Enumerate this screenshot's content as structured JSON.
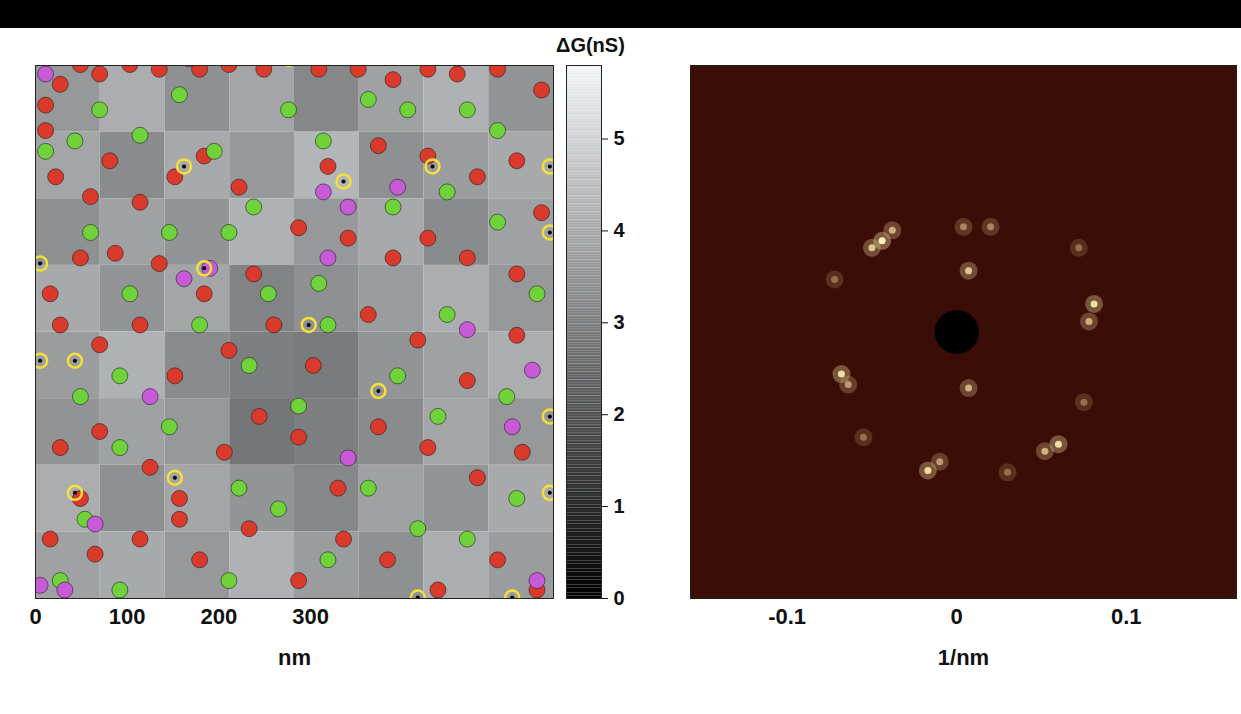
{
  "chart_data": [
    {
      "type": "heatmap",
      "x_label": "nm",
      "xlim": [
        0,
        565
      ],
      "ylim": [
        0,
        565
      ],
      "xticks": [
        0,
        100,
        200,
        300
      ],
      "tick_labels": "x",
      "cells": [
        [
          3.6,
          4.1,
          3.4,
          3.9,
          3.2,
          3.8,
          4.2,
          3.5
        ],
        [
          3.9,
          3.3,
          4.0,
          3.6,
          4.3,
          3.4,
          3.7,
          4.0
        ],
        [
          3.4,
          3.8,
          3.5,
          4.2,
          3.6,
          4.0,
          3.3,
          3.8
        ],
        [
          4.0,
          3.5,
          3.9,
          3.1,
          3.4,
          3.7,
          4.1,
          3.6
        ],
        [
          3.7,
          4.2,
          3.3,
          3.0,
          2.9,
          3.5,
          3.8,
          4.1
        ],
        [
          3.5,
          3.8,
          3.6,
          2.8,
          3.0,
          3.3,
          3.9,
          3.6
        ],
        [
          4.1,
          3.4,
          3.9,
          3.5,
          3.2,
          3.8,
          3.5,
          4.0
        ],
        [
          3.8,
          4.0,
          3.6,
          4.2,
          3.7,
          3.4,
          4.1,
          3.7
        ]
      ],
      "colorbar": {
        "label": "ΔG(nS)",
        "lim": [
          0,
          5.8
        ],
        "ticks": [
          0,
          1,
          2,
          3,
          4,
          5
        ]
      },
      "series": [
        {
          "color": "#d93a2b",
          "marker": "circle",
          "points": [
            [
              11,
              523
            ],
            [
              11,
              496
            ],
            [
              27,
              545
            ],
            [
              49,
              566
            ],
            [
              70,
              556
            ],
            [
              103,
              566
            ],
            [
              135,
              561
            ],
            [
              179,
              561
            ],
            [
              211,
              566
            ],
            [
              249,
              561
            ],
            [
              309,
              561
            ],
            [
              352,
              561
            ],
            [
              390,
              550
            ],
            [
              428,
              561
            ],
            [
              460,
              556
            ],
            [
              504,
              561
            ],
            [
              552,
              539
            ],
            [
              22,
              447
            ],
            [
              60,
              426
            ],
            [
              114,
              420
            ],
            [
              81,
              464
            ],
            [
              152,
              447
            ],
            [
              184,
              469
            ],
            [
              222,
              436
            ],
            [
              319,
              458
            ],
            [
              374,
              480
            ],
            [
              428,
              469
            ],
            [
              482,
              447
            ],
            [
              525,
              464
            ],
            [
              552,
              409
            ],
            [
              16,
              323
            ],
            [
              49,
              361
            ],
            [
              87,
              366
            ],
            [
              135,
              355
            ],
            [
              184,
              323
            ],
            [
              238,
              344
            ],
            [
              287,
              393
            ],
            [
              341,
              382
            ],
            [
              390,
              361
            ],
            [
              428,
              382
            ],
            [
              471,
              361
            ],
            [
              525,
              344
            ],
            [
              27,
              290
            ],
            [
              70,
              269
            ],
            [
              114,
              290
            ],
            [
              152,
              236
            ],
            [
              211,
              263
            ],
            [
              260,
              290
            ],
            [
              303,
              247
            ],
            [
              363,
              301
            ],
            [
              417,
              274
            ],
            [
              471,
              231
            ],
            [
              525,
              279
            ],
            [
              27,
              160
            ],
            [
              70,
              177
            ],
            [
              125,
              139
            ],
            [
              157,
              106
            ],
            [
              206,
              155
            ],
            [
              244,
              193
            ],
            [
              287,
              171
            ],
            [
              330,
              117
            ],
            [
              374,
              182
            ],
            [
              428,
              160
            ],
            [
              482,
              128
            ],
            [
              531,
              155
            ],
            [
              16,
              63
            ],
            [
              65,
              47
            ],
            [
              114,
              63
            ],
            [
              179,
              41
            ],
            [
              233,
              74
            ],
            [
              287,
              19
            ],
            [
              336,
              63
            ],
            [
              384,
              41
            ],
            [
              439,
              9
            ],
            [
              504,
              41
            ],
            [
              547,
              9
            ],
            [
              157,
              84
            ],
            [
              49,
              106
            ]
          ]
        },
        {
          "color": "#6fd23a",
          "marker": "circle",
          "points": [
            [
              11,
              474
            ],
            [
              43,
              485
            ],
            [
              70,
              518
            ],
            [
              114,
              491
            ],
            [
              157,
              534
            ],
            [
              195,
              474
            ],
            [
              238,
              415
            ],
            [
              276,
              518
            ],
            [
              314,
              485
            ],
            [
              363,
              529
            ],
            [
              406,
              518
            ],
            [
              471,
              518
            ],
            [
              504,
              496
            ],
            [
              60,
              388
            ],
            [
              103,
              323
            ],
            [
              146,
              388
            ],
            [
              211,
              388
            ],
            [
              254,
              323
            ],
            [
              309,
              334
            ],
            [
              390,
              415
            ],
            [
              449,
              431
            ],
            [
              504,
              399
            ],
            [
              547,
              323
            ],
            [
              49,
              214
            ],
            [
              92,
              236
            ],
            [
              179,
              290
            ],
            [
              233,
              247
            ],
            [
              319,
              290
            ],
            [
              395,
              236
            ],
            [
              449,
              301
            ],
            [
              514,
              214
            ],
            [
              92,
              160
            ],
            [
              146,
              182
            ],
            [
              222,
              117
            ],
            [
              287,
              204
            ],
            [
              363,
              117
            ],
            [
              439,
              193
            ],
            [
              525,
              106
            ],
            [
              27,
              19
            ],
            [
              92,
              9
            ],
            [
              211,
              19
            ],
            [
              265,
              95
            ],
            [
              319,
              41
            ],
            [
              417,
              74
            ],
            [
              471,
              63
            ],
            [
              54,
              84
            ]
          ]
        },
        {
          "color": "#c85ad8",
          "marker": "circle",
          "points": [
            [
              11,
              556
            ],
            [
              168,
              572
            ],
            [
              190,
              350
            ],
            [
              162,
              339
            ],
            [
              314,
              431
            ],
            [
              341,
              415
            ],
            [
              395,
              436
            ],
            [
              542,
              242
            ],
            [
              471,
              285
            ],
            [
              125,
              214
            ],
            [
              341,
              149
            ],
            [
              520,
              182
            ],
            [
              5,
              14
            ],
            [
              32,
              9
            ],
            [
              65,
              79
            ],
            [
              547,
              19
            ],
            [
              319,
              361
            ]
          ]
        },
        {
          "color": "#f5e03a",
          "marker": "ring",
          "points": [
            [
              276,
              572
            ],
            [
              336,
              442
            ],
            [
              162,
              458
            ],
            [
              433,
              458
            ],
            [
              184,
              350
            ],
            [
              298,
              290
            ],
            [
              43,
              252
            ],
            [
              5,
              252
            ],
            [
              5,
              355
            ],
            [
              561,
              458
            ],
            [
              561,
              388
            ],
            [
              374,
              220
            ],
            [
              152,
              128
            ],
            [
              43,
              112
            ],
            [
              520,
              1
            ],
            [
              417,
              1
            ],
            [
              561,
              193
            ],
            [
              561,
              112
            ]
          ]
        }
      ]
    },
    {
      "type": "image",
      "x_label": "1/nm",
      "xlim": [
        -0.157,
        0.165
      ],
      "ylim": [
        -0.152,
        0.152
      ],
      "xticks": [
        -0.1,
        0,
        0.1
      ],
      "tick_labels": "x",
      "spots": [
        [
          -0.044,
          0.052,
          1.0
        ],
        [
          -0.05,
          0.048,
          0.8
        ],
        [
          -0.038,
          0.058,
          0.7
        ],
        [
          0.081,
          0.016,
          0.9
        ],
        [
          0.078,
          0.006,
          0.7
        ],
        [
          0.06,
          -0.064,
          0.9
        ],
        [
          0.052,
          -0.068,
          0.7
        ],
        [
          -0.068,
          -0.024,
          0.9
        ],
        [
          -0.064,
          -0.03,
          0.6
        ],
        [
          -0.017,
          -0.079,
          0.9
        ],
        [
          -0.01,
          -0.074,
          0.6
        ],
        [
          0.007,
          0.035,
          0.8
        ],
        [
          0.007,
          -0.032,
          0.7
        ],
        [
          0.004,
          0.06,
          0.5
        ],
        [
          0.02,
          0.06,
          0.5
        ],
        [
          -0.072,
          0.03,
          0.4
        ],
        [
          0.072,
          0.048,
          0.4
        ],
        [
          0.075,
          -0.04,
          0.4
        ],
        [
          -0.055,
          -0.06,
          0.4
        ],
        [
          0.03,
          -0.08,
          0.4
        ]
      ],
      "mask_radius": 0.013
    }
  ]
}
